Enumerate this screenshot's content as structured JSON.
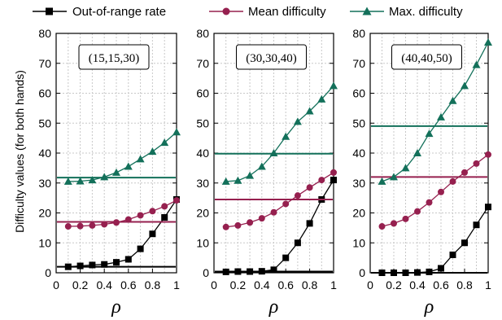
{
  "chart_data": {
    "type": "line",
    "ylabel": "Difficulty values (for both hands)",
    "xlabel": "ρ",
    "ylim": [
      0,
      80
    ],
    "xlim": [
      0,
      1
    ],
    "x_ticks": [
      "0",
      "0.2",
      "0.4",
      "0.6",
      "0.8",
      "1"
    ],
    "y_ticks": [
      "0",
      "10",
      "20",
      "30",
      "40",
      "50",
      "60",
      "70",
      "80"
    ],
    "grid": true,
    "legend_position": "top",
    "legend": [
      {
        "name": "Out-of-range rate",
        "marker": "square",
        "color": "#000000"
      },
      {
        "name": "Mean difficulty",
        "marker": "circle",
        "color": "#96204f"
      },
      {
        "name": "Max. difficulty",
        "marker": "triangle",
        "color": "#13705a"
      }
    ],
    "x": [
      0.1,
      0.2,
      0.3,
      0.4,
      0.5,
      0.6,
      0.7,
      0.8,
      0.9,
      1.0
    ],
    "panels": [
      {
        "label": "(15,15,30)",
        "series": [
          {
            "name": "Out-of-range rate",
            "values": [
              2.0,
              2.3,
              2.6,
              2.8,
              3.5,
              4.5,
              8.0,
              13.0,
              18.5,
              24.5
            ],
            "hline": 2.0
          },
          {
            "name": "Mean difficulty",
            "values": [
              15.5,
              15.6,
              15.8,
              16.2,
              16.8,
              17.8,
              19.2,
              20.6,
              22.2,
              24.2
            ],
            "hline": 17.0
          },
          {
            "name": "Max. difficulty",
            "values": [
              30.5,
              30.6,
              31.0,
              32.0,
              33.5,
              35.5,
              38.0,
              40.5,
              43.5,
              47.0
            ],
            "hline": 31.8
          }
        ]
      },
      {
        "label": "(30,30,40)",
        "series": [
          {
            "name": "Out-of-range rate",
            "values": [
              0.3,
              0.4,
              0.4,
              0.5,
              1.0,
              5.0,
              10.0,
              16.5,
              24.5,
              31.0
            ],
            "hline": 0.4
          },
          {
            "name": "Mean difficulty",
            "values": [
              15.3,
              15.8,
              16.8,
              18.2,
              20.2,
              23.0,
              25.8,
              28.5,
              31.0,
              33.5
            ],
            "hline": 24.5
          },
          {
            "name": "Max. difficulty",
            "values": [
              30.5,
              30.8,
              32.5,
              35.5,
              40.0,
              45.5,
              50.5,
              54.0,
              58.0,
              62.5
            ],
            "hline": 39.8
          }
        ]
      },
      {
        "label": "(40,40,50)",
        "series": [
          {
            "name": "Out-of-range rate",
            "values": [
              0.0,
              0.0,
              0.0,
              0.1,
              0.3,
              1.5,
              6.0,
              10.0,
              16.0,
              22.0
            ],
            "hline": 0.0
          },
          {
            "name": "Mean difficulty",
            "values": [
              15.5,
              16.5,
              18.0,
              20.5,
              23.5,
              27.0,
              30.5,
              33.5,
              36.5,
              39.5
            ],
            "hline": 32.0
          },
          {
            "name": "Max. difficulty",
            "values": [
              30.5,
              32.0,
              35.0,
              40.0,
              46.5,
              52.0,
              57.5,
              62.5,
              69.5,
              77.0
            ],
            "hline": 49.0
          }
        ]
      }
    ]
  }
}
